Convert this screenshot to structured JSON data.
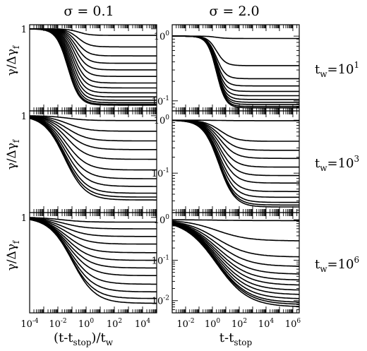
{
  "figure": {
    "columns": [
      {
        "title": "σ = 0.1",
        "xlabel_main": "(t-t",
        "xlabel_sub": "stop",
        "xlabel_tail": ")/t",
        "xlabel_sub2": "w"
      },
      {
        "title": "σ = 2.0",
        "xlabel_main": "t-t",
        "xlabel_sub": "stop",
        "xlabel_tail": "",
        "xlabel_sub2": ""
      }
    ],
    "ylabel": {
      "gamma": "γ/Δγ",
      "sub": "f"
    },
    "rows": [
      {
        "label_main": "t",
        "label_sub": "w",
        "label_eq": "=10",
        "label_exp": "1"
      },
      {
        "label_main": "t",
        "label_sub": "w",
        "label_eq": "=10",
        "label_exp": "3"
      },
      {
        "label_main": "t",
        "label_sub": "w",
        "label_eq": "=10",
        "label_exp": "6"
      }
    ]
  },
  "chart_data": [
    {
      "type": "line",
      "panel": "sigma=0.1, tw=10^1",
      "xscale": "log",
      "yscale": "linear",
      "xlim": [
        0.0001,
        100000
      ],
      "ylim": [
        0.0,
        1.05
      ],
      "yticks": [
        {
          "v": 1,
          "label": "1"
        }
      ],
      "xticks": [],
      "curves": {
        "start": 1.0,
        "finals": [
          0.92,
          0.78,
          0.67,
          0.58,
          0.5,
          0.42,
          0.34,
          0.28,
          0.22,
          0.17,
          0.13,
          0.1,
          0.08,
          0.07
        ],
        "x_mid_start": 0.3,
        "x_mid_end": 0.05,
        "width": 0.9
      }
    },
    {
      "type": "line",
      "panel": "sigma=2.0, tw=10^1",
      "xscale": "log",
      "yscale": "log",
      "xlim": [
        0.001,
        3000000
      ],
      "ylim": [
        0.07,
        1.5
      ],
      "yticks": [
        {
          "v": 1,
          "label": "10",
          "exp": "0"
        },
        {
          "v": 0.1,
          "label": "10",
          "exp": "-1"
        }
      ],
      "xticks": [],
      "curves": {
        "start": 1.0,
        "finals": [
          0.92,
          0.35,
          0.22,
          0.17,
          0.14,
          0.12,
          0.105,
          0.095,
          0.088,
          0.082,
          0.078
        ],
        "x_mid_start": 2.0,
        "x_mid_end": 2.0,
        "width": 0.75
      }
    },
    {
      "type": "line",
      "panel": "sigma=0.1, tw=10^3",
      "xscale": "log",
      "yscale": "linear",
      "xlim": [
        0.0001,
        100000
      ],
      "ylim": [
        0.0,
        1.05
      ],
      "yticks": [
        {
          "v": 1,
          "label": "1"
        }
      ],
      "xticks": [],
      "curves": {
        "start": 1.0,
        "finals": [
          0.95,
          0.84,
          0.74,
          0.65,
          0.55,
          0.44,
          0.35,
          0.27,
          0.2,
          0.16,
          0.13
        ],
        "x_mid_start": 0.05,
        "x_mid_end": 0.03,
        "width": 1.6
      }
    },
    {
      "type": "line",
      "panel": "sigma=2.0, tw=10^3",
      "xscale": "log",
      "yscale": "log",
      "xlim": [
        0.001,
        3000000
      ],
      "ylim": [
        0.018,
        1.5
      ],
      "yticks": [
        {
          "v": 1,
          "label": "10",
          "exp": "0"
        },
        {
          "v": 0.1,
          "label": "10",
          "exp": "-1"
        }
      ],
      "xticks": [],
      "curves": {
        "start": 1.0,
        "finals": [
          0.98,
          0.4,
          0.27,
          0.19,
          0.13,
          0.09,
          0.065,
          0.045,
          0.035,
          0.028,
          0.025,
          0.023
        ],
        "x_mid_start": 4.0,
        "x_mid_end": 3.0,
        "width": 1.3
      }
    },
    {
      "type": "line",
      "panel": "sigma=0.1, tw=10^6",
      "xscale": "log",
      "yscale": "linear",
      "xlim": [
        0.0001,
        100000
      ],
      "ylim": [
        0.0,
        1.05
      ],
      "yticks": [
        {
          "v": 1,
          "label": "1"
        }
      ],
      "xticks": [
        {
          "v": 0.0001,
          "label": "10",
          "exp": "-4"
        },
        {
          "v": 0.01,
          "label": "10",
          "exp": "-2"
        },
        {
          "v": 1,
          "label": "10",
          "exp": "0"
        },
        {
          "v": 100,
          "label": "10",
          "exp": "2"
        },
        {
          "v": 10000,
          "label": "10",
          "exp": "4"
        }
      ],
      "curves": {
        "start": 1.0,
        "finals": [
          0.95,
          0.88,
          0.8,
          0.72,
          0.63,
          0.55,
          0.47,
          0.39,
          0.3,
          0.22,
          0.15,
          0.1
        ],
        "x_mid_start": 0.02,
        "x_mid_end": 0.1,
        "width": 1.8
      }
    },
    {
      "type": "line",
      "panel": "sigma=2.0, tw=10^6",
      "xscale": "log",
      "yscale": "log",
      "xlim": [
        0.001,
        3000000
      ],
      "ylim": [
        0.005,
        1.5
      ],
      "yticks": [
        {
          "v": 1,
          "label": "10",
          "exp": "0"
        },
        {
          "v": 0.1,
          "label": "10",
          "exp": "-1"
        },
        {
          "v": 0.01,
          "label": "10",
          "exp": "-2"
        }
      ],
      "xticks": [
        {
          "v": 0.01,
          "label": "10",
          "exp": "-2"
        },
        {
          "v": 1,
          "label": "10",
          "exp": "0"
        },
        {
          "v": 100,
          "label": "10",
          "exp": "2"
        },
        {
          "v": 10000,
          "label": "10",
          "exp": "4"
        },
        {
          "v": 1000000,
          "label": "10",
          "exp": "6"
        }
      ],
      "curves": {
        "start": 1.0,
        "finals": [
          0.95,
          0.3,
          0.12,
          0.07,
          0.045,
          0.032,
          0.024,
          0.018,
          0.014,
          0.011,
          0.009,
          0.008,
          0.007
        ],
        "x_mid_start": 2.0,
        "x_mid_end": 2.0,
        "width": 2.6
      }
    }
  ]
}
